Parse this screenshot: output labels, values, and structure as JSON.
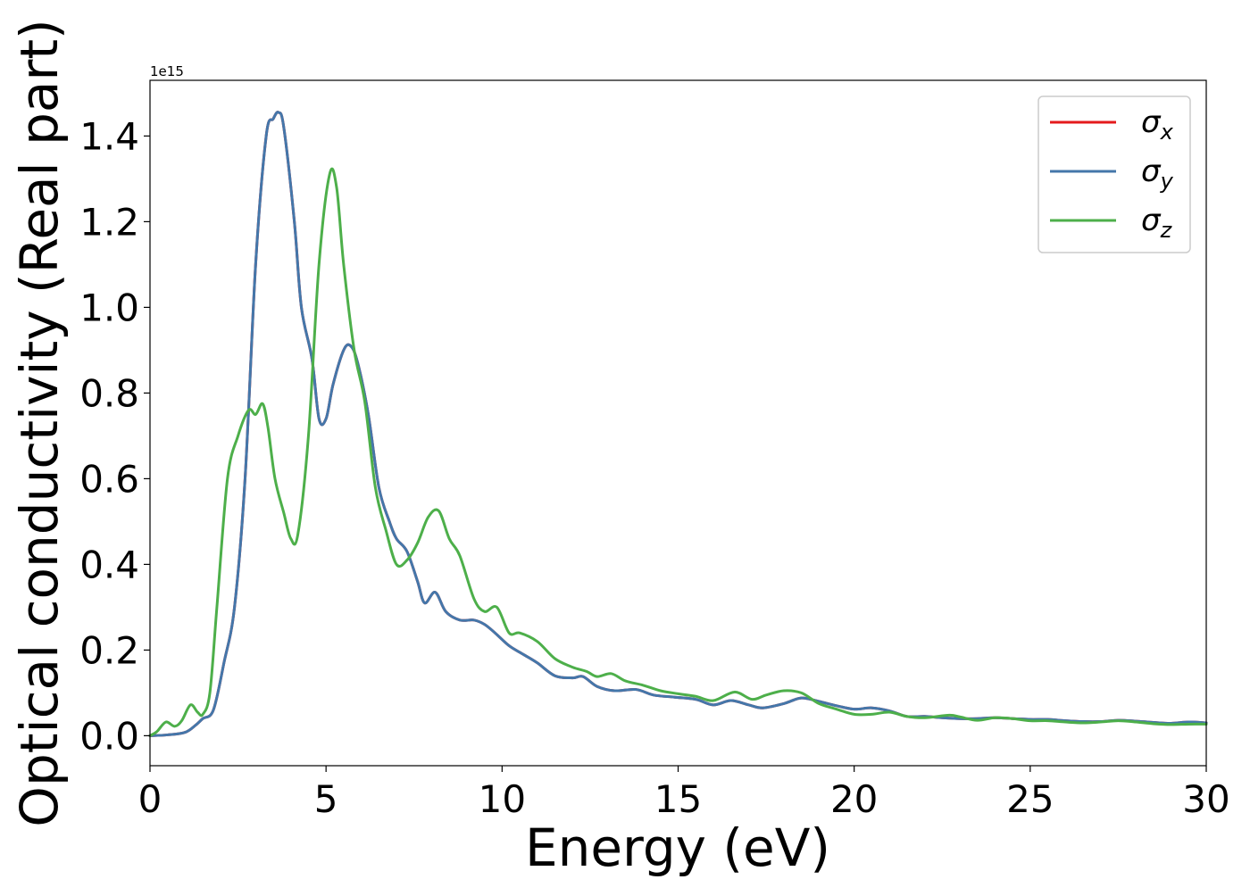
{
  "chart_data": {
    "type": "line",
    "xlabel": "Energy (eV)",
    "ylabel": "Optical conductivity (Real part)",
    "offset_text": "1e15",
    "xlim": [
      0,
      30
    ],
    "ylim": [
      -0.07,
      1.53
    ],
    "xticks": [
      0,
      5,
      10,
      15,
      20,
      25,
      30
    ],
    "xtick_labels": [
      "0",
      "5",
      "10",
      "15",
      "20",
      "25",
      "30"
    ],
    "yticks": [
      0.0,
      0.2,
      0.4,
      0.6,
      0.8,
      1.0,
      1.2,
      1.4
    ],
    "ytick_labels": [
      "0.0",
      "0.2",
      "0.4",
      "0.6",
      "0.8",
      "1.0",
      "1.2",
      "1.4"
    ],
    "grid": false,
    "legend_position": "top-right",
    "series": [
      {
        "name": "σx",
        "symbol": "σ",
        "subscript": "x",
        "color": "#e41a1c",
        "points": [
          [
            0,
            0
          ],
          [
            0.5,
            0.002
          ],
          [
            1,
            0.008
          ],
          [
            1.3,
            0.025
          ],
          [
            1.5,
            0.04
          ],
          [
            1.8,
            0.06
          ],
          [
            2.1,
            0.17
          ],
          [
            2.4,
            0.3
          ],
          [
            2.7,
            0.6
          ],
          [
            3.0,
            1.1
          ],
          [
            3.3,
            1.4
          ],
          [
            3.5,
            1.44
          ],
          [
            3.65,
            1.455
          ],
          [
            3.8,
            1.42
          ],
          [
            4.1,
            1.2
          ],
          [
            4.3,
            1.0
          ],
          [
            4.6,
            0.88
          ],
          [
            4.8,
            0.74
          ],
          [
            5.0,
            0.74
          ],
          [
            5.2,
            0.82
          ],
          [
            5.5,
            0.9
          ],
          [
            5.7,
            0.91
          ],
          [
            5.9,
            0.87
          ],
          [
            6.2,
            0.75
          ],
          [
            6.5,
            0.58
          ],
          [
            6.8,
            0.5
          ],
          [
            7.0,
            0.46
          ],
          [
            7.3,
            0.43
          ],
          [
            7.6,
            0.36
          ],
          [
            7.8,
            0.31
          ],
          [
            8.1,
            0.335
          ],
          [
            8.4,
            0.29
          ],
          [
            8.8,
            0.27
          ],
          [
            9.2,
            0.27
          ],
          [
            9.5,
            0.26
          ],
          [
            9.8,
            0.24
          ],
          [
            10.2,
            0.21
          ],
          [
            10.6,
            0.19
          ],
          [
            11.0,
            0.17
          ],
          [
            11.5,
            0.14
          ],
          [
            12.0,
            0.135
          ],
          [
            12.3,
            0.138
          ],
          [
            12.7,
            0.115
          ],
          [
            13.2,
            0.105
          ],
          [
            13.8,
            0.108
          ],
          [
            14.3,
            0.095
          ],
          [
            14.9,
            0.09
          ],
          [
            15.5,
            0.085
          ],
          [
            16.0,
            0.072
          ],
          [
            16.5,
            0.082
          ],
          [
            17.0,
            0.072
          ],
          [
            17.4,
            0.065
          ],
          [
            18.0,
            0.075
          ],
          [
            18.5,
            0.088
          ],
          [
            19.0,
            0.08
          ],
          [
            19.5,
            0.07
          ],
          [
            20.0,
            0.062
          ],
          [
            20.5,
            0.065
          ],
          [
            21.0,
            0.058
          ],
          [
            21.5,
            0.045
          ],
          [
            22.0,
            0.045
          ],
          [
            22.5,
            0.042
          ],
          [
            23.0,
            0.04
          ],
          [
            23.5,
            0.04
          ],
          [
            24.0,
            0.042
          ],
          [
            24.5,
            0.04
          ],
          [
            25.0,
            0.038
          ],
          [
            25.5,
            0.038
          ],
          [
            26.0,
            0.035
          ],
          [
            26.5,
            0.033
          ],
          [
            27.0,
            0.033
          ],
          [
            27.5,
            0.036
          ],
          [
            28.0,
            0.034
          ],
          [
            28.5,
            0.031
          ],
          [
            29.0,
            0.029
          ],
          [
            29.5,
            0.032
          ],
          [
            30.0,
            0.03
          ]
        ]
      },
      {
        "name": "σy",
        "symbol": "σ",
        "subscript": "y",
        "color": "#4477aa",
        "points": [
          [
            0,
            0
          ],
          [
            0.5,
            0.002
          ],
          [
            1,
            0.008
          ],
          [
            1.3,
            0.025
          ],
          [
            1.5,
            0.04
          ],
          [
            1.8,
            0.06
          ],
          [
            2.1,
            0.17
          ],
          [
            2.4,
            0.3
          ],
          [
            2.7,
            0.6
          ],
          [
            3.0,
            1.1
          ],
          [
            3.3,
            1.4
          ],
          [
            3.5,
            1.44
          ],
          [
            3.65,
            1.455
          ],
          [
            3.8,
            1.42
          ],
          [
            4.1,
            1.2
          ],
          [
            4.3,
            1.0
          ],
          [
            4.6,
            0.88
          ],
          [
            4.8,
            0.74
          ],
          [
            5.0,
            0.74
          ],
          [
            5.2,
            0.82
          ],
          [
            5.5,
            0.9
          ],
          [
            5.7,
            0.91
          ],
          [
            5.9,
            0.87
          ],
          [
            6.2,
            0.75
          ],
          [
            6.5,
            0.58
          ],
          [
            6.8,
            0.5
          ],
          [
            7.0,
            0.46
          ],
          [
            7.3,
            0.43
          ],
          [
            7.6,
            0.36
          ],
          [
            7.8,
            0.31
          ],
          [
            8.1,
            0.335
          ],
          [
            8.4,
            0.29
          ],
          [
            8.8,
            0.27
          ],
          [
            9.2,
            0.27
          ],
          [
            9.5,
            0.26
          ],
          [
            9.8,
            0.24
          ],
          [
            10.2,
            0.21
          ],
          [
            10.6,
            0.19
          ],
          [
            11.0,
            0.17
          ],
          [
            11.5,
            0.14
          ],
          [
            12.0,
            0.135
          ],
          [
            12.3,
            0.138
          ],
          [
            12.7,
            0.115
          ],
          [
            13.2,
            0.105
          ],
          [
            13.8,
            0.108
          ],
          [
            14.3,
            0.095
          ],
          [
            14.9,
            0.09
          ],
          [
            15.5,
            0.085
          ],
          [
            16.0,
            0.072
          ],
          [
            16.5,
            0.082
          ],
          [
            17.0,
            0.072
          ],
          [
            17.4,
            0.065
          ],
          [
            18.0,
            0.075
          ],
          [
            18.5,
            0.088
          ],
          [
            19.0,
            0.08
          ],
          [
            19.5,
            0.07
          ],
          [
            20.0,
            0.062
          ],
          [
            20.5,
            0.065
          ],
          [
            21.0,
            0.058
          ],
          [
            21.5,
            0.045
          ],
          [
            22.0,
            0.045
          ],
          [
            22.5,
            0.042
          ],
          [
            23.0,
            0.04
          ],
          [
            23.5,
            0.04
          ],
          [
            24.0,
            0.042
          ],
          [
            24.5,
            0.04
          ],
          [
            25.0,
            0.038
          ],
          [
            25.5,
            0.038
          ],
          [
            26.0,
            0.035
          ],
          [
            26.5,
            0.033
          ],
          [
            27.0,
            0.033
          ],
          [
            27.5,
            0.036
          ],
          [
            28.0,
            0.034
          ],
          [
            28.5,
            0.031
          ],
          [
            29.0,
            0.029
          ],
          [
            29.5,
            0.032
          ],
          [
            30.0,
            0.03
          ]
        ]
      },
      {
        "name": "σz",
        "symbol": "σ",
        "subscript": "z",
        "color": "#4daf4a",
        "points": [
          [
            0,
            0
          ],
          [
            0.2,
            0.01
          ],
          [
            0.45,
            0.032
          ],
          [
            0.7,
            0.022
          ],
          [
            0.9,
            0.035
          ],
          [
            1.15,
            0.072
          ],
          [
            1.35,
            0.055
          ],
          [
            1.5,
            0.05
          ],
          [
            1.7,
            0.1
          ],
          [
            1.9,
            0.3
          ],
          [
            2.2,
            0.6
          ],
          [
            2.5,
            0.7
          ],
          [
            2.8,
            0.76
          ],
          [
            3.0,
            0.75
          ],
          [
            3.2,
            0.775
          ],
          [
            3.35,
            0.72
          ],
          [
            3.55,
            0.6
          ],
          [
            3.8,
            0.52
          ],
          [
            4.0,
            0.46
          ],
          [
            4.2,
            0.47
          ],
          [
            4.5,
            0.7
          ],
          [
            4.8,
            1.1
          ],
          [
            5.1,
            1.31
          ],
          [
            5.3,
            1.28
          ],
          [
            5.5,
            1.1
          ],
          [
            5.8,
            0.9
          ],
          [
            6.1,
            0.78
          ],
          [
            6.4,
            0.58
          ],
          [
            6.7,
            0.48
          ],
          [
            7.0,
            0.4
          ],
          [
            7.3,
            0.41
          ],
          [
            7.6,
            0.45
          ],
          [
            7.9,
            0.51
          ],
          [
            8.2,
            0.525
          ],
          [
            8.5,
            0.46
          ],
          [
            8.8,
            0.42
          ],
          [
            9.2,
            0.32
          ],
          [
            9.5,
            0.29
          ],
          [
            9.85,
            0.3
          ],
          [
            10.2,
            0.24
          ],
          [
            10.5,
            0.24
          ],
          [
            11.0,
            0.22
          ],
          [
            11.5,
            0.18
          ],
          [
            12.0,
            0.16
          ],
          [
            12.4,
            0.15
          ],
          [
            12.7,
            0.138
          ],
          [
            13.1,
            0.145
          ],
          [
            13.5,
            0.128
          ],
          [
            14.0,
            0.118
          ],
          [
            14.5,
            0.105
          ],
          [
            15.0,
            0.098
          ],
          [
            15.5,
            0.092
          ],
          [
            16.0,
            0.082
          ],
          [
            16.6,
            0.102
          ],
          [
            17.1,
            0.085
          ],
          [
            17.5,
            0.095
          ],
          [
            18.0,
            0.105
          ],
          [
            18.5,
            0.1
          ],
          [
            19.0,
            0.075
          ],
          [
            19.5,
            0.062
          ],
          [
            20.0,
            0.05
          ],
          [
            20.5,
            0.05
          ],
          [
            21.0,
            0.055
          ],
          [
            21.5,
            0.045
          ],
          [
            22.0,
            0.042
          ],
          [
            22.7,
            0.048
          ],
          [
            23.0,
            0.044
          ],
          [
            23.5,
            0.036
          ],
          [
            24.0,
            0.042
          ],
          [
            24.5,
            0.04
          ],
          [
            25.0,
            0.035
          ],
          [
            25.5,
            0.035
          ],
          [
            26.0,
            0.032
          ],
          [
            26.5,
            0.03
          ],
          [
            27.0,
            0.032
          ],
          [
            27.5,
            0.035
          ],
          [
            28.0,
            0.032
          ],
          [
            28.5,
            0.028
          ],
          [
            29.0,
            0.026
          ],
          [
            29.5,
            0.027
          ],
          [
            30.0,
            0.027
          ]
        ]
      }
    ]
  }
}
